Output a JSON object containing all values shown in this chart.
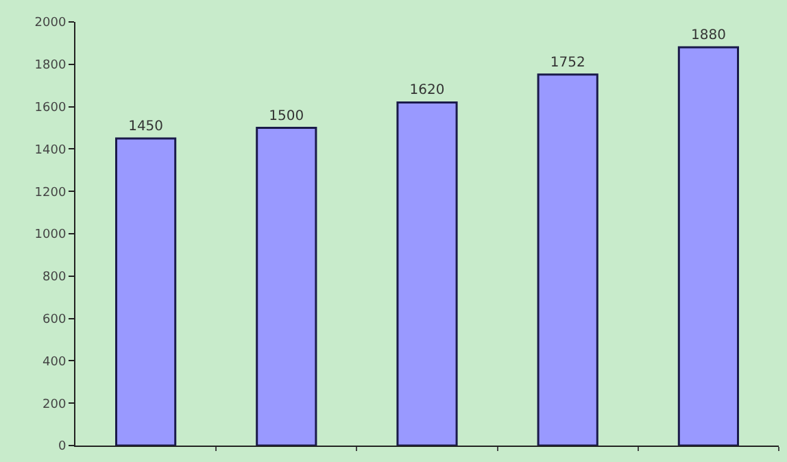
{
  "chart_data": {
    "type": "bar",
    "categories": [
      null,
      null,
      null,
      null,
      null
    ],
    "values": [
      1450,
      1500,
      1620,
      1752,
      1880
    ],
    "color": "#9999ff",
    "data_labels": true,
    "ylim": [
      0,
      2000
    ],
    "yticks": [
      0,
      200,
      400,
      600,
      800,
      1000,
      1200,
      1400,
      1600,
      1800,
      2000
    ],
    "grid": false,
    "legend": false
  }
}
